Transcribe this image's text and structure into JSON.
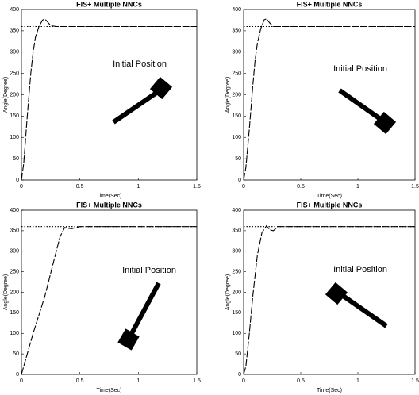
{
  "chart_data": [
    {
      "type": "line",
      "title": "FIS+ Multiple NNCs",
      "xlabel": "Time(Sec)",
      "ylabel": "Angle(Degree)",
      "annotation": "Initial Position",
      "xlim": [
        0,
        1.5
      ],
      "xticks": [
        0,
        0.5,
        1,
        1.5
      ],
      "ylim": [
        0,
        400
      ],
      "yticks": [
        0,
        50,
        100,
        150,
        200,
        250,
        300,
        350,
        400
      ],
      "series": [
        {
          "color": "#000000",
          "style": "dashed",
          "x": [
            0,
            0.02,
            0.05,
            0.08,
            0.1,
            0.12,
            0.15,
            0.18,
            0.2,
            0.22,
            0.25,
            0.3,
            1.5
          ],
          "values": [
            0,
            40,
            150,
            250,
            300,
            335,
            360,
            375,
            378,
            372,
            362,
            360,
            360
          ]
        },
        {
          "color": "#000000",
          "style": "dotted",
          "x": [
            0,
            1.5
          ],
          "values": [
            360,
            360
          ]
        }
      ]
    },
    {
      "type": "line",
      "title": "FIS+ Multiple NNCs",
      "xlabel": "Time(Sec)",
      "ylabel": "Angle(Degree)",
      "annotation": "Initial Position",
      "xlim": [
        0,
        1.5
      ],
      "xticks": [
        0,
        0.5,
        1,
        1.5
      ],
      "ylim": [
        0,
        400
      ],
      "yticks": [
        0,
        50,
        100,
        150,
        200,
        250,
        300,
        350,
        400
      ],
      "series": [
        {
          "color": "#000000",
          "style": "dashed",
          "x": [
            0,
            0.02,
            0.05,
            0.08,
            0.1,
            0.12,
            0.15,
            0.18,
            0.2,
            0.23,
            0.26,
            0.3,
            1.5
          ],
          "values": [
            0,
            30,
            120,
            220,
            280,
            320,
            355,
            376,
            378,
            368,
            360,
            360,
            360
          ]
        },
        {
          "color": "#000000",
          "style": "dotted",
          "x": [
            0,
            1.5
          ],
          "values": [
            360,
            360
          ]
        }
      ]
    },
    {
      "type": "line",
      "title": "FIS+ Multiple NNCs",
      "xlabel": "Time(Sec)",
      "ylabel": "Angle(Degree)",
      "annotation": "Initial Position",
      "xlim": [
        0,
        1.5
      ],
      "xticks": [
        0,
        0.5,
        1,
        1.5
      ],
      "ylim": [
        0,
        400
      ],
      "yticks": [
        0,
        50,
        100,
        150,
        200,
        250,
        300,
        350,
        400
      ],
      "series": [
        {
          "color": "#000000",
          "style": "dashed",
          "x": [
            0,
            0.03,
            0.1,
            0.2,
            0.28,
            0.33,
            0.37,
            0.4,
            0.43,
            0.5,
            1.5
          ],
          "values": [
            0,
            30,
            100,
            190,
            280,
            335,
            358,
            356,
            355,
            360,
            360
          ]
        },
        {
          "color": "#000000",
          "style": "dotted",
          "x": [
            0,
            1.5
          ],
          "values": [
            360,
            360
          ]
        }
      ]
    },
    {
      "type": "line",
      "title": "FIS+ Multiple NNCs",
      "xlabel": "Time(Sec)",
      "ylabel": "Angle(Degree)",
      "annotation": "Initial Position",
      "xlim": [
        0,
        1.5
      ],
      "xticks": [
        0,
        0.5,
        1,
        1.5
      ],
      "ylim": [
        0,
        400
      ],
      "yticks": [
        0,
        50,
        100,
        150,
        200,
        250,
        300,
        350,
        400
      ],
      "series": [
        {
          "color": "#000000",
          "style": "dashed",
          "x": [
            0,
            0.02,
            0.05,
            0.08,
            0.12,
            0.16,
            0.2,
            0.23,
            0.26,
            0.3,
            1.5
          ],
          "values": [
            0,
            20,
            100,
            190,
            290,
            345,
            362,
            352,
            350,
            360,
            360
          ]
        },
        {
          "color": "#000000",
          "style": "dotted",
          "x": [
            0,
            1.5
          ],
          "values": [
            360,
            360
          ]
        }
      ]
    }
  ]
}
